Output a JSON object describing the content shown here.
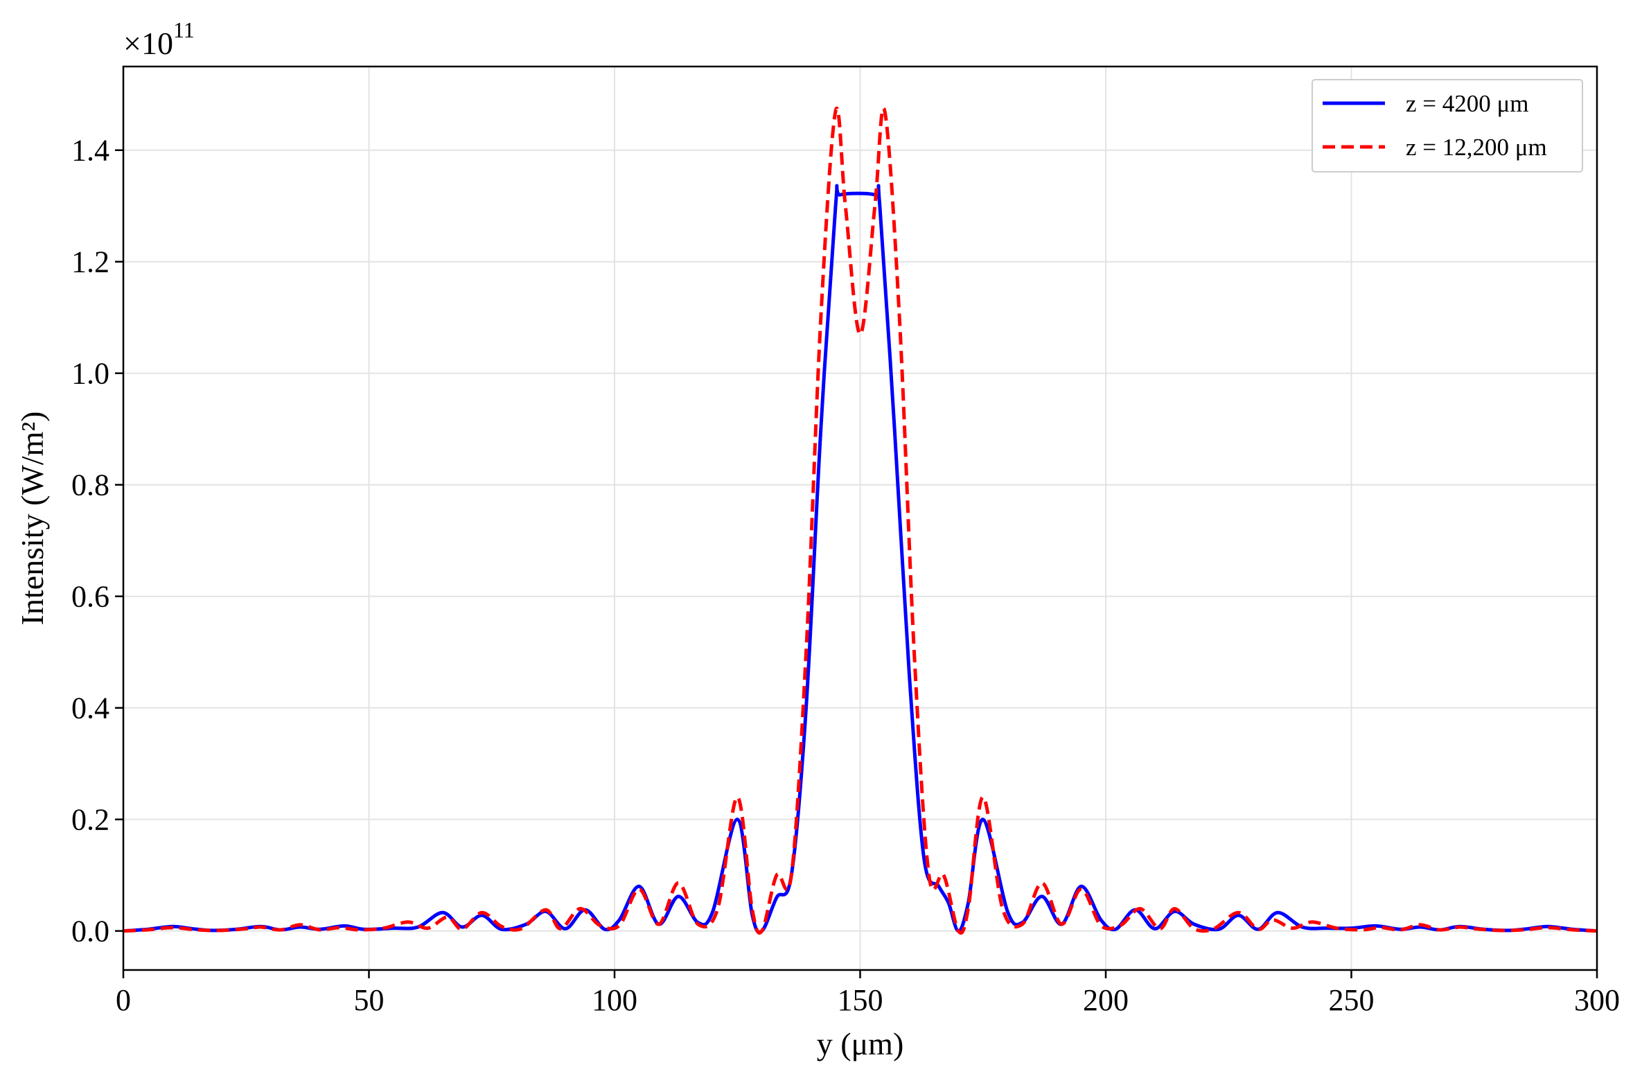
{
  "chart_data": {
    "type": "line",
    "xlabel": "y (μm)",
    "ylabel": "Intensity (W/m²)",
    "y_multiplier": {
      "base": "×10",
      "exponent": "11"
    },
    "xlim": [
      0,
      300
    ],
    "ylim": [
      -0.07,
      1.55
    ],
    "x_ticks": [
      0,
      50,
      100,
      150,
      200,
      250,
      300
    ],
    "x_tick_labels": [
      "0",
      "50",
      "100",
      "150",
      "200",
      "250",
      "300"
    ],
    "y_ticks": [
      0.0,
      0.2,
      0.4,
      0.6,
      0.8,
      1.0,
      1.2,
      1.4
    ],
    "y_tick_labels": [
      "0.0",
      "0.2",
      "0.4",
      "0.6",
      "0.8",
      "1.0",
      "1.2",
      "1.4"
    ],
    "grid": true,
    "legend_position": "top-right",
    "series": [
      {
        "name": "z = 4200 μm",
        "color": "#0000ff",
        "style": "solid",
        "points": [
          [
            0,
            0.0
          ],
          [
            5,
            0.003
          ],
          [
            10,
            0.008
          ],
          [
            14,
            0.004
          ],
          [
            18,
            0.001
          ],
          [
            23,
            0.003
          ],
          [
            28,
            0.008
          ],
          [
            32,
            0.002
          ],
          [
            36,
            0.007
          ],
          [
            40,
            0.003
          ],
          [
            45,
            0.009
          ],
          [
            49,
            0.003
          ],
          [
            55,
            0.005
          ],
          [
            60,
            0.007
          ],
          [
            65,
            0.033
          ],
          [
            69,
            0.007
          ],
          [
            73,
            0.028
          ],
          [
            77,
            0.003
          ],
          [
            82,
            0.012
          ],
          [
            86,
            0.035
          ],
          [
            90,
            0.004
          ],
          [
            94,
            0.038
          ],
          [
            98,
            0.003
          ],
          [
            101,
            0.02
          ],
          [
            105,
            0.08
          ],
          [
            109,
            0.012
          ],
          [
            113,
            0.062
          ],
          [
            117,
            0.015
          ],
          [
            120,
            0.035
          ],
          [
            125,
            0.2
          ],
          [
            128,
            0.03
          ],
          [
            130,
            0.0
          ],
          [
            133,
            0.06
          ],
          [
            136,
            0.1
          ],
          [
            139,
            0.4
          ],
          [
            142,
            0.9
          ],
          [
            145,
            1.3
          ],
          [
            146,
            1.32
          ],
          [
            153,
            1.32
          ],
          [
            154,
            1.3
          ],
          [
            157,
            0.9
          ],
          [
            160,
            0.46
          ],
          [
            163,
            0.13
          ],
          [
            166,
            0.08
          ],
          [
            168,
            0.05
          ],
          [
            170,
            0.0
          ],
          [
            172,
            0.05
          ],
          [
            175,
            0.2
          ],
          [
            180,
            0.035
          ],
          [
            183,
            0.015
          ],
          [
            187,
            0.062
          ],
          [
            191,
            0.012
          ],
          [
            195,
            0.08
          ],
          [
            199,
            0.02
          ],
          [
            202,
            0.003
          ],
          [
            206,
            0.038
          ],
          [
            210,
            0.004
          ],
          [
            214,
            0.035
          ],
          [
            218,
            0.012
          ],
          [
            223,
            0.003
          ],
          [
            227,
            0.028
          ],
          [
            231,
            0.003
          ],
          [
            235,
            0.033
          ],
          [
            240,
            0.007
          ],
          [
            245,
            0.005
          ],
          [
            250,
            0.005
          ],
          [
            255,
            0.009
          ],
          [
            260,
            0.003
          ],
          [
            264,
            0.007
          ],
          [
            268,
            0.002
          ],
          [
            272,
            0.008
          ],
          [
            277,
            0.003
          ],
          [
            282,
            0.001
          ],
          [
            286,
            0.004
          ],
          [
            290,
            0.008
          ],
          [
            295,
            0.003
          ],
          [
            300,
            0.0
          ]
        ]
      },
      {
        "name": "z = 12,200 μm",
        "color": "#ff0000",
        "style": "dashed",
        "points": [
          [
            0,
            0.0
          ],
          [
            5,
            0.002
          ],
          [
            10,
            0.006
          ],
          [
            15,
            0.002
          ],
          [
            20,
            0.001
          ],
          [
            25,
            0.004
          ],
          [
            28,
            0.007
          ],
          [
            32,
            0.002
          ],
          [
            36,
            0.011
          ],
          [
            40,
            0.002
          ],
          [
            44,
            0.006
          ],
          [
            48,
            0.002
          ],
          [
            53,
            0.005
          ],
          [
            58,
            0.016
          ],
          [
            62,
            0.005
          ],
          [
            66,
            0.025
          ],
          [
            69,
            0.003
          ],
          [
            73,
            0.033
          ],
          [
            77,
            0.008
          ],
          [
            81,
            0.004
          ],
          [
            86,
            0.038
          ],
          [
            89,
            0.004
          ],
          [
            93,
            0.04
          ],
          [
            97,
            0.01
          ],
          [
            101,
            0.01
          ],
          [
            105,
            0.075
          ],
          [
            109,
            0.012
          ],
          [
            113,
            0.086
          ],
          [
            117,
            0.012
          ],
          [
            121,
            0.04
          ],
          [
            125,
            0.24
          ],
          [
            128,
            0.04
          ],
          [
            130,
            0.0
          ],
          [
            133,
            0.1
          ],
          [
            136,
            0.1
          ],
          [
            139,
            0.5
          ],
          [
            142,
            1.1
          ],
          [
            145,
            1.47
          ],
          [
            147,
            1.3
          ],
          [
            150,
            1.07
          ],
          [
            153,
            1.3
          ],
          [
            155,
            1.47
          ],
          [
            158,
            1.1
          ],
          [
            161,
            0.5
          ],
          [
            164,
            0.1
          ],
          [
            167,
            0.1
          ],
          [
            170,
            0.0
          ],
          [
            172,
            0.04
          ],
          [
            175,
            0.24
          ],
          [
            179,
            0.04
          ],
          [
            183,
            0.012
          ],
          [
            187,
            0.086
          ],
          [
            191,
            0.012
          ],
          [
            195,
            0.075
          ],
          [
            199,
            0.01
          ],
          [
            203,
            0.01
          ],
          [
            207,
            0.04
          ],
          [
            211,
            0.004
          ],
          [
            214,
            0.04
          ],
          [
            218,
            0.004
          ],
          [
            222,
            0.004
          ],
          [
            227,
            0.033
          ],
          [
            231,
            0.003
          ],
          [
            234,
            0.02
          ],
          [
            238,
            0.005
          ],
          [
            242,
            0.016
          ],
          [
            247,
            0.005
          ],
          [
            252,
            0.002
          ],
          [
            256,
            0.006
          ],
          [
            260,
            0.002
          ],
          [
            264,
            0.011
          ],
          [
            268,
            0.002
          ],
          [
            272,
            0.007
          ],
          [
            275,
            0.004
          ],
          [
            280,
            0.001
          ],
          [
            285,
            0.002
          ],
          [
            290,
            0.006
          ],
          [
            295,
            0.002
          ],
          [
            300,
            0.0
          ]
        ]
      }
    ]
  }
}
